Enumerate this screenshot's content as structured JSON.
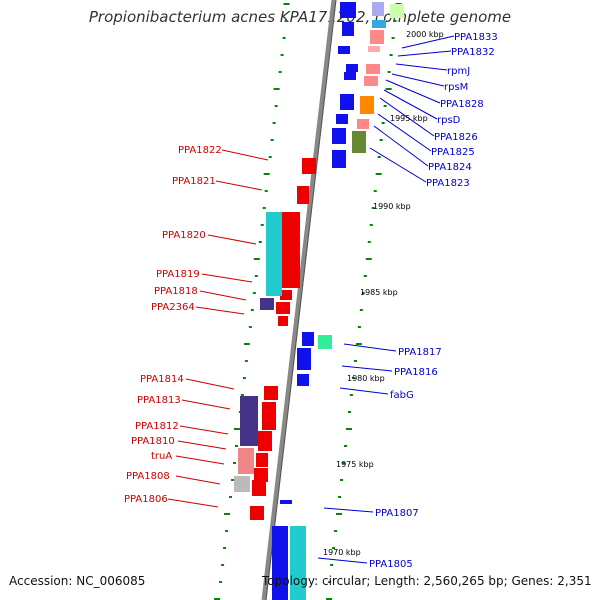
{
  "title": "Propionibacterium acnes KPA171202, complete genome",
  "footer": {
    "accession": "Accession: NC_006085",
    "summary": "Topology: circular; Length: 2,560,265 bp; Genes: 2,351"
  },
  "colors": {
    "red_label": "#cc0000",
    "blue_label": "#0000cc",
    "backbone": "#888888",
    "tick": "#008800"
  },
  "kbp_labels": [
    "2000 kbp",
    "1995 kbp",
    "1990 kbp",
    "1985 kbp",
    "1980 kbp",
    "1975 kbp",
    "1970 kbp"
  ],
  "left_labels": [
    "PPA1822",
    "PPA1821",
    "PPA1820",
    "PPA1819",
    "PPA1818",
    "PPA2364",
    "PPA1814",
    "PPA1813",
    "PPA1812",
    "PPA1810",
    "truA",
    "PPA1808",
    "PPA1806"
  ],
  "right_labels": [
    "PPA1833",
    "PPA1832",
    "rpmJ",
    "rpsM",
    "PPA1828",
    "rpsD",
    "PPA1826",
    "PPA1825",
    "PPA1824",
    "PPA1823",
    "PPA1817",
    "PPA1816",
    "fabG",
    "PPA1807",
    "PPA1805"
  ]
}
